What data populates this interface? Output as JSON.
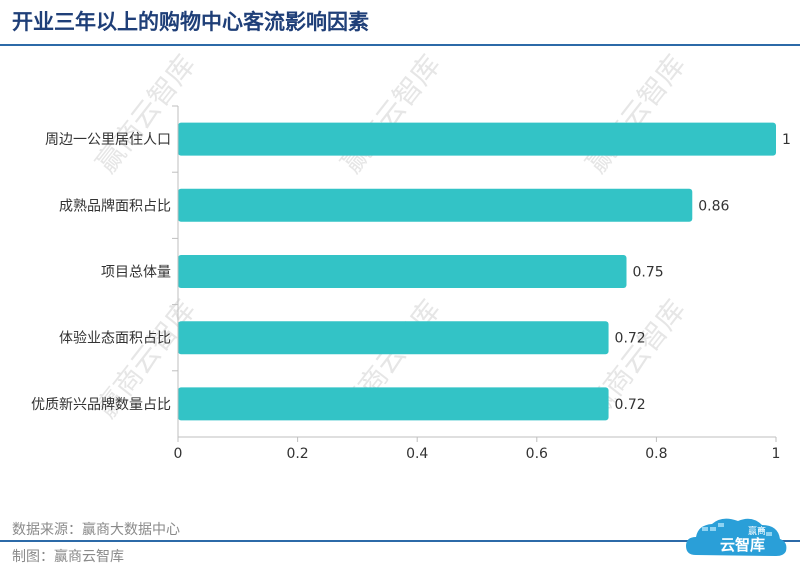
{
  "title": "开业三年以上的购物中心客流影响因素",
  "footer": {
    "source": "数据来源：赢商大数据中心",
    "credit": "制图：赢商云智库"
  },
  "watermark": "赢商云智库",
  "logo": {
    "top_text": "赢商",
    "main_text": "云智库"
  },
  "colors": {
    "bar": "#33c3c6",
    "title": "#1f3f78",
    "rule": "#2c6aa8",
    "axis": "#bfbfbf",
    "text": "#333333",
    "watermark": "#e6e6e6"
  },
  "chart_data": {
    "type": "bar",
    "orientation": "horizontal",
    "categories": [
      "周边一公里居住人口",
      "成熟品牌面积占比",
      "项目总体量",
      "体验业态面积占比",
      "优质新兴品牌数量占比"
    ],
    "values": [
      1,
      0.86,
      0.75,
      0.72,
      0.72
    ],
    "value_labels": [
      "1",
      "0.86",
      "0.75",
      "0.72",
      "0.72"
    ],
    "xlim": [
      0,
      1
    ],
    "xticks": [
      0,
      0.2,
      0.4,
      0.6,
      0.8,
      1
    ],
    "xtick_labels": [
      "0",
      "0.2",
      "0.4",
      "0.6",
      "0.8",
      "1"
    ],
    "grid": false,
    "legend": "none"
  }
}
